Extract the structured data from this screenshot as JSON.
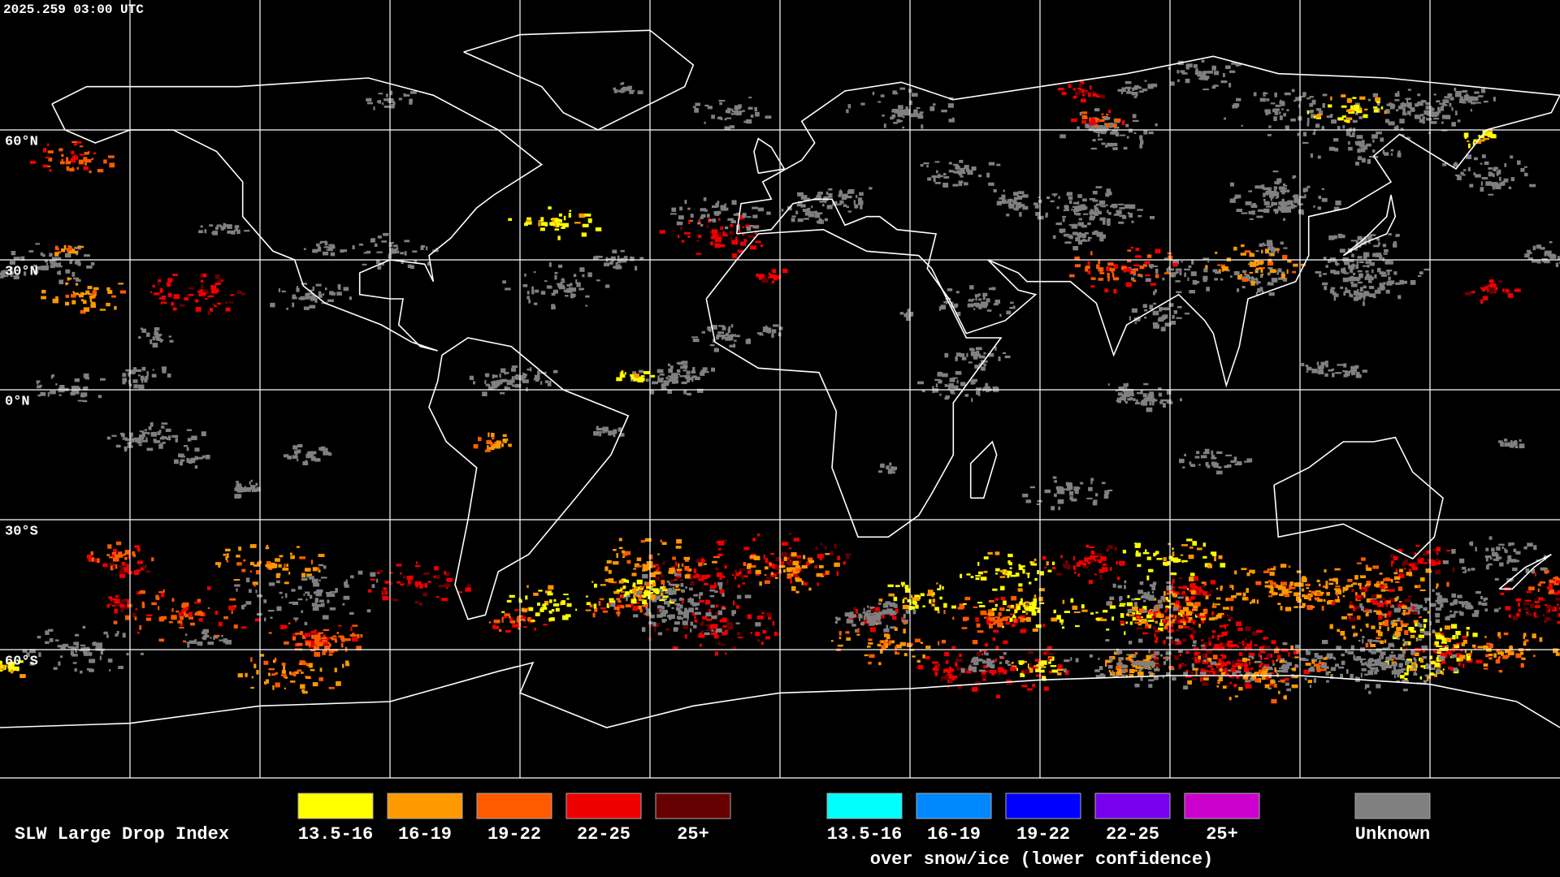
{
  "header": {
    "timestamp": "2025.259 03:00 UTC"
  },
  "map": {
    "lat_labels": [
      "60°N",
      "30°N",
      "0°N",
      "30°S",
      "60°S"
    ]
  },
  "legend": {
    "title": "SLW Large Drop Index",
    "standard": [
      {
        "label": "13.5-16",
        "color": "#ffff00"
      },
      {
        "label": "16-19",
        "color": "#ff9900"
      },
      {
        "label": "19-22",
        "color": "#ff5a00"
      },
      {
        "label": "22-25",
        "color": "#ee0000"
      },
      {
        "label": "25+",
        "color": "#660000"
      }
    ],
    "snow_ice": [
      {
        "label": "13.5-16",
        "color": "#00ffff"
      },
      {
        "label": "16-19",
        "color": "#0088ff"
      },
      {
        "label": "19-22",
        "color": "#0000ff"
      },
      {
        "label": "22-25",
        "color": "#7700ee"
      },
      {
        "label": "25+",
        "color": "#cc00cc"
      }
    ],
    "snow_ice_note": "over snow/ice (lower confidence)",
    "unknown": {
      "label": "Unknown",
      "color": "#808080"
    }
  }
}
